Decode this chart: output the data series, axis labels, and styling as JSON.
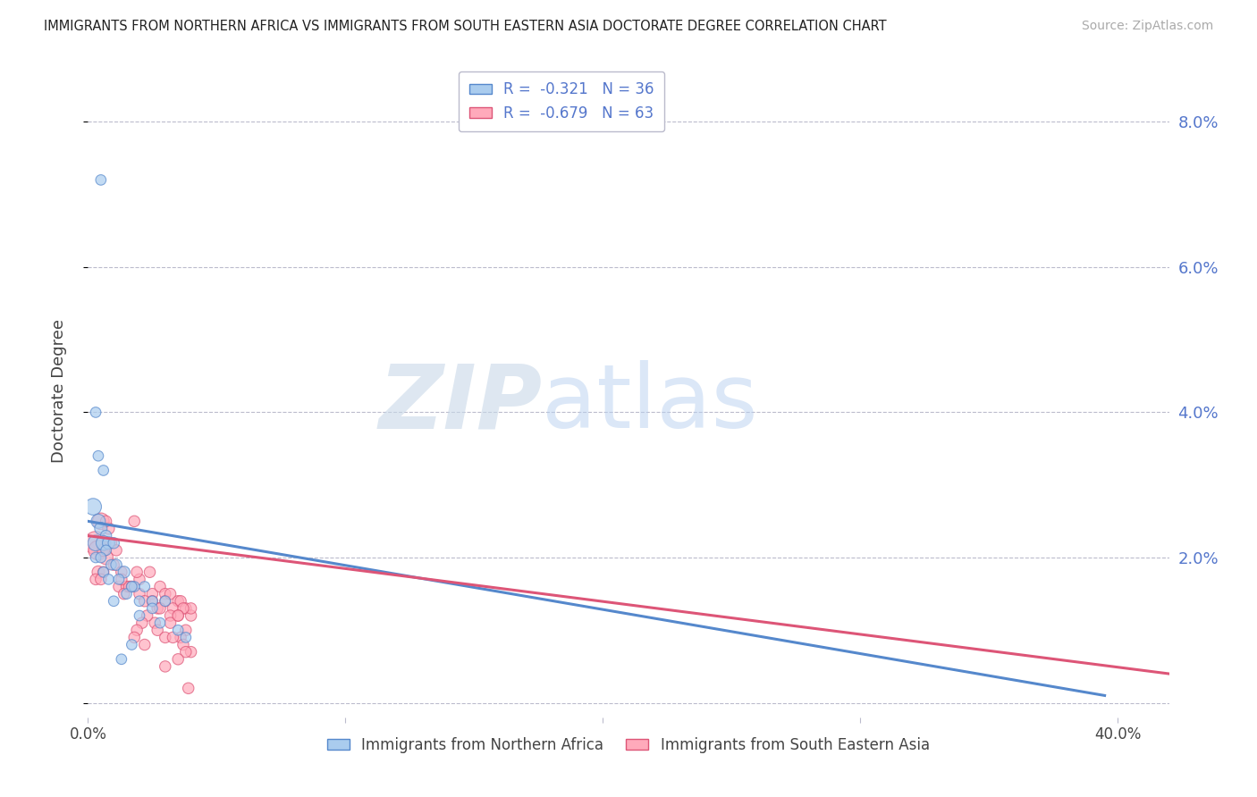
{
  "title": "IMMIGRANTS FROM NORTHERN AFRICA VS IMMIGRANTS FROM SOUTH EASTERN ASIA DOCTORATE DEGREE CORRELATION CHART",
  "source": "Source: ZipAtlas.com",
  "ylabel": "Doctorate Degree",
  "y_ticks": [
    0.0,
    0.02,
    0.04,
    0.06,
    0.08
  ],
  "y_tick_labels": [
    "",
    "2.0%",
    "4.0%",
    "6.0%",
    "8.0%"
  ],
  "x_lim": [
    0.0,
    0.42
  ],
  "y_lim": [
    -0.002,
    0.088
  ],
  "x_ticks": [
    0.0,
    0.1,
    0.2,
    0.3,
    0.4
  ],
  "x_tick_labels": [
    "0.0%",
    "",
    "",
    "",
    "40.0%"
  ],
  "blue_scatter_x": [
    0.005,
    0.003,
    0.004,
    0.006,
    0.002,
    0.004,
    0.005,
    0.007,
    0.003,
    0.006,
    0.008,
    0.01,
    0.007,
    0.003,
    0.005,
    0.009,
    0.011,
    0.014,
    0.006,
    0.008,
    0.012,
    0.015,
    0.018,
    0.022,
    0.017,
    0.01,
    0.025,
    0.03,
    0.02,
    0.02,
    0.025,
    0.028,
    0.035,
    0.038,
    0.017,
    0.013
  ],
  "blue_scatter_y": [
    0.072,
    0.04,
    0.034,
    0.032,
    0.027,
    0.025,
    0.024,
    0.023,
    0.022,
    0.022,
    0.022,
    0.022,
    0.021,
    0.02,
    0.02,
    0.019,
    0.019,
    0.018,
    0.018,
    0.017,
    0.017,
    0.015,
    0.016,
    0.016,
    0.016,
    0.014,
    0.014,
    0.014,
    0.014,
    0.012,
    0.013,
    0.011,
    0.01,
    0.009,
    0.008,
    0.006
  ],
  "blue_scatter_sizes": [
    70,
    70,
    70,
    70,
    180,
    130,
    100,
    80,
    160,
    140,
    100,
    80,
    70,
    70,
    70,
    70,
    80,
    90,
    70,
    70,
    70,
    70,
    70,
    70,
    70,
    70,
    70,
    70,
    70,
    70,
    70,
    70,
    70,
    70,
    70,
    70
  ],
  "pink_scatter_x": [
    0.003,
    0.004,
    0.005,
    0.007,
    0.004,
    0.006,
    0.008,
    0.01,
    0.006,
    0.003,
    0.009,
    0.005,
    0.007,
    0.011,
    0.013,
    0.012,
    0.015,
    0.014,
    0.016,
    0.013,
    0.018,
    0.017,
    0.02,
    0.02,
    0.022,
    0.019,
    0.025,
    0.024,
    0.027,
    0.028,
    0.025,
    0.03,
    0.03,
    0.032,
    0.035,
    0.033,
    0.036,
    0.038,
    0.04,
    0.04,
    0.037,
    0.035,
    0.032,
    0.028,
    0.026,
    0.023,
    0.021,
    0.019,
    0.032,
    0.035,
    0.038,
    0.036,
    0.039,
    0.027,
    0.03,
    0.033,
    0.037,
    0.04,
    0.038,
    0.035,
    0.03,
    0.018,
    0.022
  ],
  "pink_scatter_y": [
    0.022,
    0.021,
    0.025,
    0.02,
    0.018,
    0.021,
    0.024,
    0.019,
    0.018,
    0.017,
    0.022,
    0.017,
    0.025,
    0.021,
    0.018,
    0.016,
    0.016,
    0.015,
    0.016,
    0.017,
    0.025,
    0.016,
    0.017,
    0.015,
    0.014,
    0.018,
    0.015,
    0.018,
    0.013,
    0.016,
    0.014,
    0.015,
    0.014,
    0.015,
    0.014,
    0.013,
    0.014,
    0.013,
    0.012,
    0.013,
    0.013,
    0.012,
    0.012,
    0.013,
    0.011,
    0.012,
    0.011,
    0.01,
    0.011,
    0.012,
    0.01,
    0.009,
    0.002,
    0.01,
    0.009,
    0.009,
    0.008,
    0.007,
    0.007,
    0.006,
    0.005,
    0.009,
    0.008
  ],
  "pink_scatter_sizes": [
    350,
    250,
    180,
    130,
    100,
    100,
    90,
    80,
    80,
    80,
    80,
    80,
    80,
    80,
    80,
    80,
    80,
    80,
    80,
    80,
    80,
    80,
    80,
    80,
    80,
    80,
    80,
    80,
    80,
    80,
    80,
    80,
    80,
    80,
    80,
    80,
    80,
    80,
    80,
    80,
    80,
    80,
    80,
    80,
    80,
    80,
    80,
    80,
    80,
    80,
    80,
    80,
    80,
    80,
    80,
    80,
    80,
    80,
    80,
    80,
    80,
    80,
    80
  ],
  "blue_line_x": [
    0.0,
    0.395
  ],
  "blue_line_y": [
    0.025,
    0.001
  ],
  "pink_line_x": [
    0.0,
    0.42
  ],
  "pink_line_y": [
    0.023,
    0.004
  ],
  "blue_color": "#5588cc",
  "pink_color": "#dd5577",
  "blue_fill": "#aaccee",
  "pink_fill": "#ffaabb",
  "grid_color": "#bbbbcc",
  "right_tick_color": "#5577cc",
  "label_color": "#444444",
  "background_color": "#ffffff"
}
